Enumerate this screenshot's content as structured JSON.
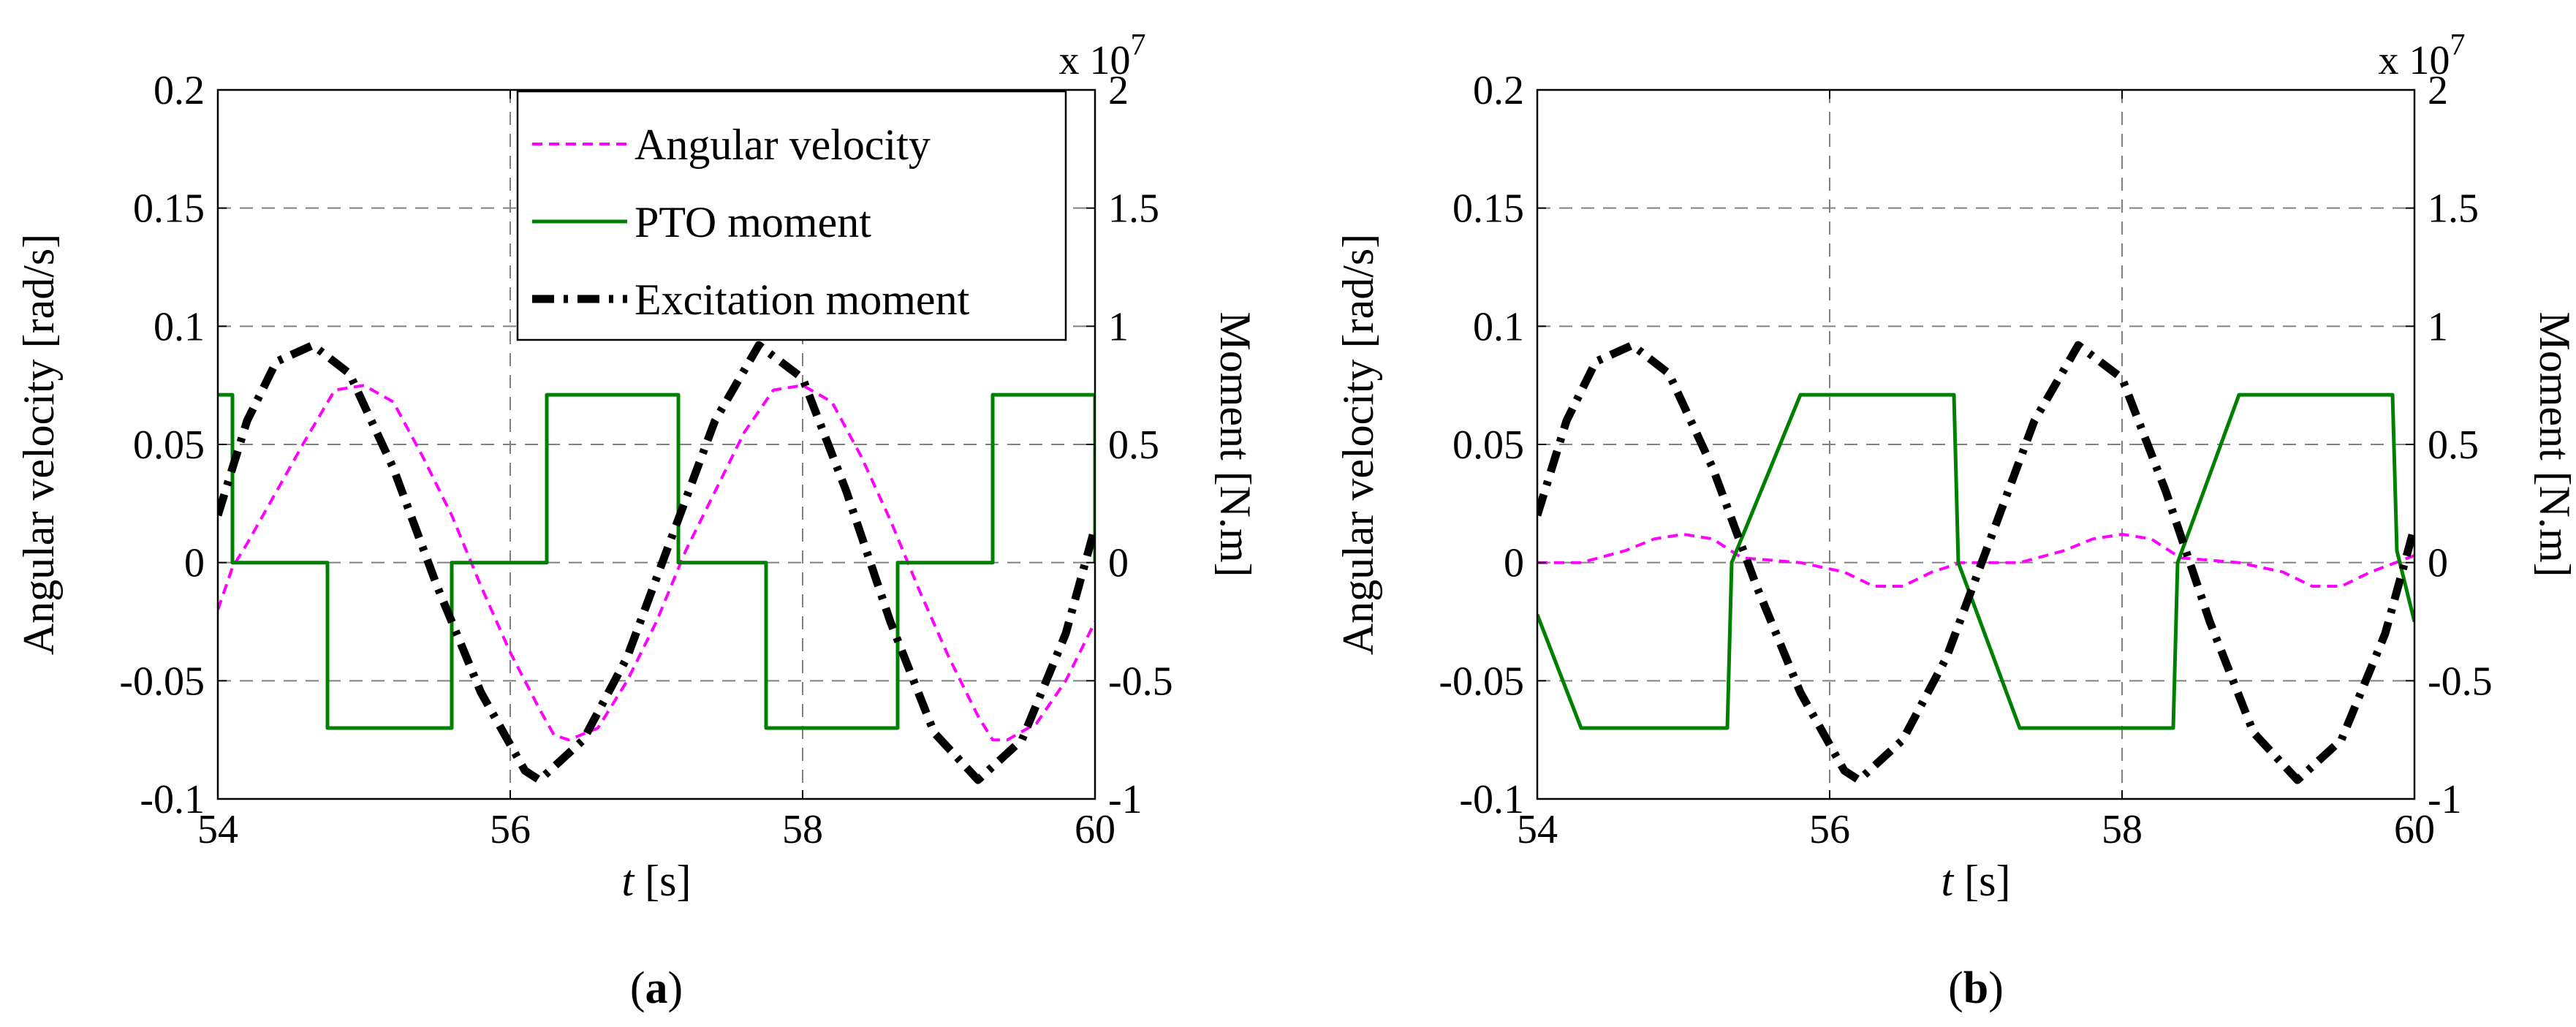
{
  "figure": {
    "panel_labels": [
      "a",
      "b"
    ]
  },
  "colors": {
    "angular_velocity": "#ff00ff",
    "pto_moment": "#008000",
    "excitation_moment": "#000000",
    "grid": "#808080"
  },
  "chart_data": [
    {
      "type": "line",
      "panel": "a",
      "xlabel_var": "t",
      "xlabel_unit": "[s]",
      "ylabel_left": "Angular velocity [rad/s]",
      "ylabel_right": "Moment [N.m]",
      "right_multiplier_base": "x 10",
      "right_multiplier_exp": "7",
      "xlim": [
        54,
        60
      ],
      "ylim_left": [
        -0.1,
        0.2
      ],
      "ylim_right": [
        -1,
        2
      ],
      "x_ticks": [
        "54",
        "56",
        "58",
        "60"
      ],
      "x_tick_values": [
        54,
        56,
        58,
        60
      ],
      "y_left_ticks": [
        "-0.1",
        "-0.05",
        "0",
        "0.05",
        "0.1",
        "0.15",
        "0.2"
      ],
      "y_left_tick_values": [
        -0.1,
        -0.05,
        0,
        0.05,
        0.1,
        0.15,
        0.2
      ],
      "y_right_ticks": [
        "-1",
        "-0.5",
        "0",
        "0.5",
        "1",
        "1.5",
        "2"
      ],
      "y_right_tick_values": [
        -1,
        -0.5,
        0,
        0.5,
        1,
        1.5,
        2
      ],
      "grid": true,
      "legend": {
        "position": "top-right",
        "entries": [
          "Angular velocity",
          "PTO moment",
          "Excitation moment"
        ]
      },
      "series": [
        {
          "name": "Angular velocity",
          "axis": "left",
          "style": "dashed",
          "x": [
            54.0,
            54.1,
            54.2,
            54.4,
            54.6,
            54.8,
            55.0,
            55.2,
            55.4,
            55.6,
            55.8,
            56.0,
            56.2,
            56.3,
            56.4,
            56.6,
            56.8,
            57.0,
            57.1,
            57.2,
            57.4,
            57.6,
            57.8,
            58.0,
            58.2,
            58.4,
            58.6,
            58.8,
            59.0,
            59.2,
            59.3,
            59.4,
            59.6,
            59.8,
            60.0
          ],
          "y": [
            -0.02,
            -0.002,
            0.008,
            0.03,
            0.052,
            0.073,
            0.075,
            0.068,
            0.045,
            0.02,
            -0.01,
            -0.038,
            -0.062,
            -0.073,
            -0.075,
            -0.07,
            -0.05,
            -0.025,
            -0.01,
            0.005,
            0.03,
            0.055,
            0.073,
            0.075,
            0.068,
            0.045,
            0.018,
            -0.012,
            -0.04,
            -0.065,
            -0.075,
            -0.075,
            -0.068,
            -0.05,
            -0.025
          ]
        },
        {
          "name": "PTO moment",
          "axis": "right",
          "style": "solid",
          "x": [
            54.0,
            54.1,
            54.1,
            54.75,
            54.75,
            55.6,
            55.6,
            56.25,
            56.25,
            57.15,
            57.15,
            57.75,
            57.75,
            58.65,
            58.65,
            59.3,
            59.3,
            60.0,
            60.0
          ],
          "y": [
            0.71,
            0.71,
            0,
            0,
            -0.7,
            -0.7,
            0,
            0,
            0.71,
            0.71,
            0,
            0,
            -0.7,
            -0.7,
            0,
            0,
            0.71,
            0.71,
            0
          ]
        },
        {
          "name": "Excitation moment",
          "axis": "right",
          "style": "dashdot",
          "x": [
            54.0,
            54.2,
            54.4,
            54.65,
            54.9,
            55.2,
            55.5,
            55.8,
            56.1,
            56.2,
            56.5,
            56.8,
            57.1,
            57.4,
            57.7,
            58.0,
            58.3,
            58.6,
            58.9,
            59.2,
            59.5,
            59.8,
            60.0
          ],
          "y": [
            0.2,
            0.6,
            0.85,
            0.92,
            0.8,
            0.4,
            -0.1,
            -0.55,
            -0.88,
            -0.92,
            -0.75,
            -0.4,
            0.1,
            0.6,
            0.92,
            0.78,
            0.3,
            -0.25,
            -0.72,
            -0.92,
            -0.75,
            -0.3,
            0.15
          ]
        }
      ]
    },
    {
      "type": "line",
      "panel": "b",
      "xlabel_var": "t",
      "xlabel_unit": "[s]",
      "ylabel_left": "Angular velocity [rad/s]",
      "ylabel_right": "Moment [N.m]",
      "right_multiplier_base": "x 10",
      "right_multiplier_exp": "7",
      "xlim": [
        54,
        60
      ],
      "ylim_left": [
        -0.1,
        0.2
      ],
      "ylim_right": [
        -1,
        2
      ],
      "x_ticks": [
        "54",
        "56",
        "58",
        "60"
      ],
      "x_tick_values": [
        54,
        56,
        58,
        60
      ],
      "y_left_ticks": [
        "-0.1",
        "-0.05",
        "0",
        "0.05",
        "0.1",
        "0.15",
        "0.2"
      ],
      "y_left_tick_values": [
        -0.1,
        -0.05,
        0,
        0.05,
        0.1,
        0.15,
        0.2
      ],
      "y_right_ticks": [
        "-1",
        "-0.5",
        "0",
        "0.5",
        "1",
        "1.5",
        "2"
      ],
      "y_right_tick_values": [
        -1,
        -0.5,
        0,
        0.5,
        1,
        1.5,
        2
      ],
      "grid": true,
      "legend": null,
      "series": [
        {
          "name": "Angular velocity",
          "axis": "left",
          "style": "dashed",
          "x": [
            54.0,
            54.3,
            54.6,
            54.8,
            55.0,
            55.2,
            55.4,
            55.8,
            56.1,
            56.3,
            56.5,
            56.7,
            56.9,
            57.3,
            57.6,
            57.8,
            58.0,
            58.2,
            58.4,
            58.8,
            59.1,
            59.3,
            59.5,
            59.7,
            60.0
          ],
          "y": [
            0,
            0,
            0.005,
            0.01,
            0.012,
            0.01,
            0.002,
            0,
            -0.004,
            -0.01,
            -0.01,
            -0.004,
            0,
            0,
            0.005,
            0.01,
            0.012,
            0.01,
            0.002,
            0,
            -0.004,
            -0.01,
            -0.01,
            -0.004,
            0.003
          ]
        },
        {
          "name": "PTO moment",
          "axis": "right",
          "style": "solid",
          "x": [
            54.0,
            54.3,
            55.3,
            55.33,
            55.8,
            56.85,
            56.88,
            57.3,
            58.35,
            58.38,
            58.8,
            59.85,
            59.88,
            60.0
          ],
          "y": [
            -0.22,
            -0.7,
            -0.7,
            0,
            0.71,
            0.71,
            0,
            -0.7,
            -0.7,
            0,
            0.71,
            0.71,
            0.05,
            -0.25
          ]
        },
        {
          "name": "Excitation moment",
          "axis": "right",
          "style": "dashdot",
          "x": [
            54.0,
            54.2,
            54.4,
            54.65,
            54.9,
            55.2,
            55.5,
            55.8,
            56.1,
            56.2,
            56.5,
            56.8,
            57.1,
            57.4,
            57.7,
            58.0,
            58.3,
            58.6,
            58.9,
            59.2,
            59.5,
            59.8,
            60.0
          ],
          "y": [
            0.2,
            0.6,
            0.85,
            0.92,
            0.8,
            0.4,
            -0.1,
            -0.55,
            -0.88,
            -0.92,
            -0.75,
            -0.4,
            0.1,
            0.6,
            0.92,
            0.78,
            0.3,
            -0.25,
            -0.72,
            -0.92,
            -0.75,
            -0.3,
            0.15
          ]
        }
      ]
    }
  ]
}
